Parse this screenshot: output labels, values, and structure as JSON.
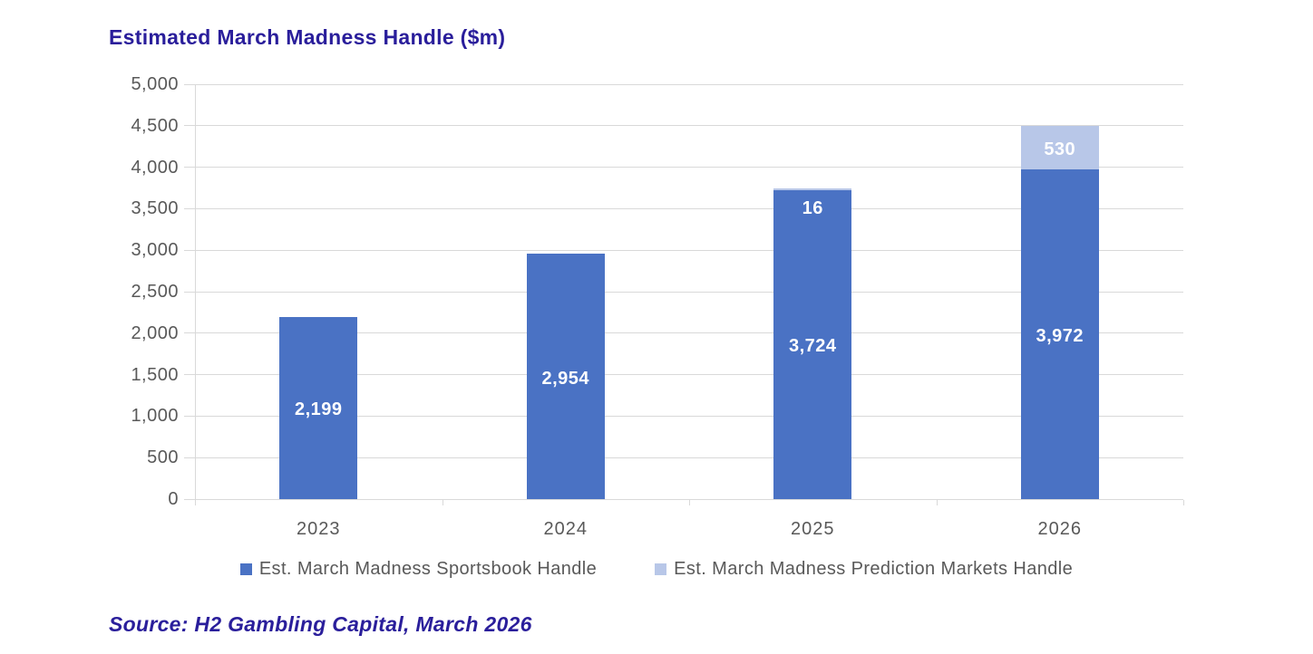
{
  "title": "Estimated March Madness Handle ($m)",
  "source_note": "Source: H2 Gambling Capital, March 2026",
  "colors": {
    "title_text": "#2A1E9B",
    "source_text": "#2A1E9B",
    "axis_text": "#595959",
    "legend_text": "#595959",
    "gridline": "#D9D9D9",
    "bar_label_text": "#FFFFFF",
    "series_sportsbook": "#4A72C4",
    "series_prediction": "#B8C7E8"
  },
  "chart_data": {
    "type": "bar",
    "stacked": true,
    "title": "Estimated March Madness Handle ($m)",
    "categories": [
      "2023",
      "2024",
      "2025",
      "2026"
    ],
    "series": [
      {
        "name": "Est. March Madness Sportsbook Handle",
        "color": "#4A72C4",
        "values": [
          2199,
          2954,
          3724,
          3972
        ],
        "data_labels": [
          "2,199",
          "2,954",
          "3,724",
          "3,972"
        ]
      },
      {
        "name": "Est. March Madness Prediction Markets Handle",
        "color": "#B8C7E8",
        "values": [
          0,
          0,
          16,
          530
        ],
        "data_labels": [
          "",
          "",
          "16",
          "530"
        ]
      }
    ],
    "xlabel": "",
    "ylabel": "",
    "ylim": [
      0,
      5000
    ],
    "ytick_interval": 500,
    "ytick_labels": [
      "0",
      "500",
      "1,000",
      "1,500",
      "2,000",
      "2,500",
      "3,000",
      "3,500",
      "4,000",
      "4,500",
      "5,000"
    ],
    "grid": true,
    "legend_position": "bottom"
  }
}
